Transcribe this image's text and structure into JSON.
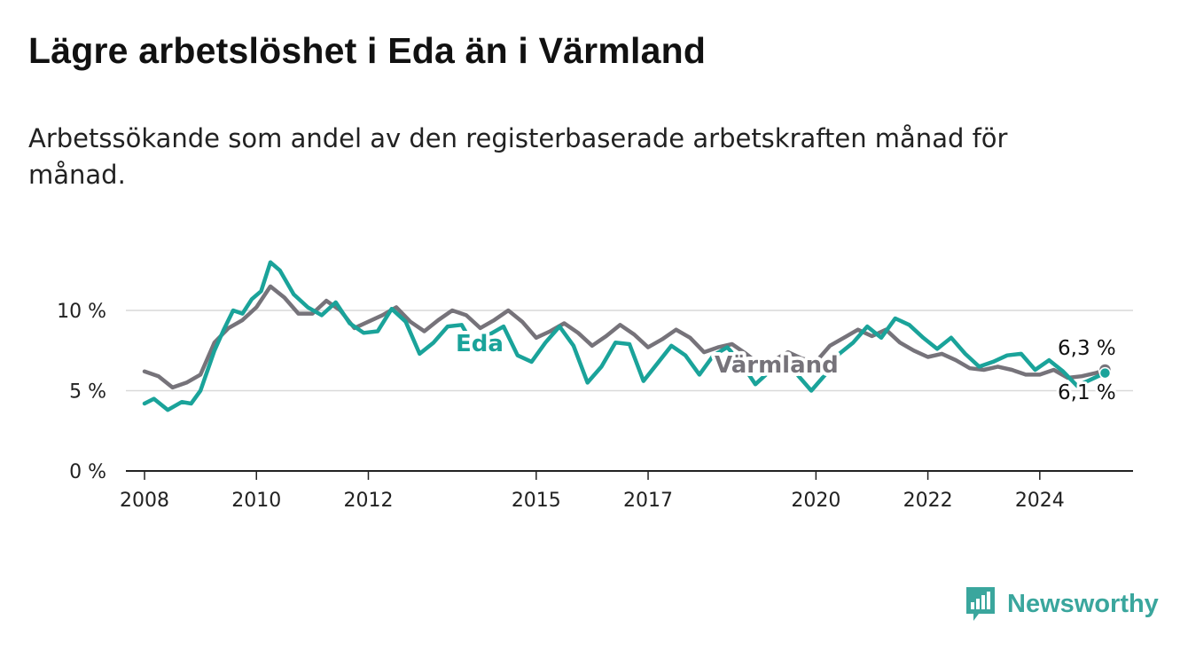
{
  "title": "Lägre arbetslöshet i Eda än i Värmland",
  "subtitle": "Arbetssökande som andel av den registerbaserade arbetskraften månad för månad.",
  "brand": "Newsworthy",
  "colors": {
    "eda": "#1aa39a",
    "varmland": "#76737a",
    "grid": "#d9d9d9",
    "axis": "#222222",
    "brand": "#3aa69d"
  },
  "chart_data": {
    "type": "line",
    "x_ticks": [
      "2008",
      "2010",
      "2012",
      "2015",
      "2017",
      "2020",
      "2022",
      "2024"
    ],
    "y_ticks": [
      "0 %",
      "5 %",
      "10 %"
    ],
    "ylim": [
      0,
      13.5
    ],
    "xlim": [
      "2007-09",
      "2025-09"
    ],
    "grid": true,
    "series": [
      {
        "name": "Eda",
        "end_label": "6,1 %",
        "points": [
          [
            "2008-01",
            4.2
          ],
          [
            "2008-03",
            4.5
          ],
          [
            "2008-06",
            3.8
          ],
          [
            "2008-09",
            4.3
          ],
          [
            "2008-11",
            4.2
          ],
          [
            "2009-01",
            5.0
          ],
          [
            "2009-04",
            7.5
          ],
          [
            "2009-06",
            8.8
          ],
          [
            "2009-08",
            10.0
          ],
          [
            "2009-10",
            9.8
          ],
          [
            "2009-12",
            10.7
          ],
          [
            "2010-02",
            11.2
          ],
          [
            "2010-04",
            13.0
          ],
          [
            "2010-06",
            12.5
          ],
          [
            "2010-09",
            11.0
          ],
          [
            "2010-12",
            10.2
          ],
          [
            "2011-03",
            9.7
          ],
          [
            "2011-06",
            10.5
          ],
          [
            "2011-09",
            9.2
          ],
          [
            "2011-12",
            8.6
          ],
          [
            "2012-03",
            8.7
          ],
          [
            "2012-06",
            10.1
          ],
          [
            "2012-09",
            9.3
          ],
          [
            "2012-12",
            7.3
          ],
          [
            "2013-03",
            8.0
          ],
          [
            "2013-06",
            9.0
          ],
          [
            "2013-09",
            9.1
          ],
          [
            "2013-12",
            7.6
          ],
          [
            "2014-03",
            8.5
          ],
          [
            "2014-06",
            9.0
          ],
          [
            "2014-09",
            7.2
          ],
          [
            "2014-12",
            6.8
          ],
          [
            "2015-03",
            8.0
          ],
          [
            "2015-06",
            9.0
          ],
          [
            "2015-09",
            7.8
          ],
          [
            "2015-12",
            5.5
          ],
          [
            "2016-03",
            6.5
          ],
          [
            "2016-06",
            8.0
          ],
          [
            "2016-09",
            7.9
          ],
          [
            "2016-12",
            5.6
          ],
          [
            "2017-03",
            6.7
          ],
          [
            "2017-06",
            7.8
          ],
          [
            "2017-09",
            7.2
          ],
          [
            "2017-12",
            6.0
          ],
          [
            "2018-03",
            7.2
          ],
          [
            "2018-06",
            7.7
          ],
          [
            "2018-09",
            6.7
          ],
          [
            "2018-12",
            5.4
          ],
          [
            "2019-03",
            6.2
          ],
          [
            "2019-06",
            6.8
          ],
          [
            "2019-09",
            6.0
          ],
          [
            "2019-12",
            5.0
          ],
          [
            "2020-03",
            6.0
          ],
          [
            "2020-06",
            7.3
          ],
          [
            "2020-09",
            8.0
          ],
          [
            "2020-12",
            9.0
          ],
          [
            "2021-03",
            8.3
          ],
          [
            "2021-06",
            9.5
          ],
          [
            "2021-09",
            9.1
          ],
          [
            "2021-12",
            8.3
          ],
          [
            "2022-03",
            7.6
          ],
          [
            "2022-06",
            8.3
          ],
          [
            "2022-09",
            7.3
          ],
          [
            "2022-12",
            6.5
          ],
          [
            "2023-03",
            6.8
          ],
          [
            "2023-06",
            7.2
          ],
          [
            "2023-09",
            7.3
          ],
          [
            "2023-12",
            6.3
          ],
          [
            "2024-03",
            6.9
          ],
          [
            "2024-06",
            6.2
          ],
          [
            "2024-09",
            5.3
          ],
          [
            "2024-12",
            5.7
          ],
          [
            "2025-03",
            6.1
          ]
        ]
      },
      {
        "name": "Värmland",
        "end_label": "6,3 %",
        "points": [
          [
            "2008-01",
            6.2
          ],
          [
            "2008-04",
            5.9
          ],
          [
            "2008-07",
            5.2
          ],
          [
            "2008-10",
            5.5
          ],
          [
            "2009-01",
            6.0
          ],
          [
            "2009-04",
            8.0
          ],
          [
            "2009-07",
            8.9
          ],
          [
            "2009-10",
            9.4
          ],
          [
            "2010-01",
            10.2
          ],
          [
            "2010-04",
            11.5
          ],
          [
            "2010-07",
            10.8
          ],
          [
            "2010-10",
            9.8
          ],
          [
            "2011-01",
            9.8
          ],
          [
            "2011-04",
            10.6
          ],
          [
            "2011-07",
            10.0
          ],
          [
            "2011-10",
            8.9
          ],
          [
            "2012-01",
            9.3
          ],
          [
            "2012-04",
            9.7
          ],
          [
            "2012-07",
            10.2
          ],
          [
            "2012-10",
            9.3
          ],
          [
            "2013-01",
            8.7
          ],
          [
            "2013-04",
            9.4
          ],
          [
            "2013-07",
            10.0
          ],
          [
            "2013-10",
            9.7
          ],
          [
            "2014-01",
            8.9
          ],
          [
            "2014-04",
            9.4
          ],
          [
            "2014-07",
            10.0
          ],
          [
            "2014-10",
            9.3
          ],
          [
            "2015-01",
            8.3
          ],
          [
            "2015-04",
            8.7
          ],
          [
            "2015-07",
            9.2
          ],
          [
            "2015-10",
            8.6
          ],
          [
            "2016-01",
            7.8
          ],
          [
            "2016-04",
            8.4
          ],
          [
            "2016-07",
            9.1
          ],
          [
            "2016-10",
            8.5
          ],
          [
            "2017-01",
            7.7
          ],
          [
            "2017-04",
            8.2
          ],
          [
            "2017-07",
            8.8
          ],
          [
            "2017-10",
            8.3
          ],
          [
            "2018-01",
            7.4
          ],
          [
            "2018-04",
            7.7
          ],
          [
            "2018-07",
            7.9
          ],
          [
            "2018-10",
            7.3
          ],
          [
            "2019-01",
            6.6
          ],
          [
            "2019-04",
            6.9
          ],
          [
            "2019-07",
            7.4
          ],
          [
            "2019-10",
            7.0
          ],
          [
            "2020-01",
            6.8
          ],
          [
            "2020-04",
            7.8
          ],
          [
            "2020-07",
            8.3
          ],
          [
            "2020-10",
            8.8
          ],
          [
            "2021-01",
            8.4
          ],
          [
            "2021-04",
            8.8
          ],
          [
            "2021-07",
            8.0
          ],
          [
            "2021-10",
            7.5
          ],
          [
            "2022-01",
            7.1
          ],
          [
            "2022-04",
            7.3
          ],
          [
            "2022-07",
            6.9
          ],
          [
            "2022-10",
            6.4
          ],
          [
            "2023-01",
            6.3
          ],
          [
            "2023-04",
            6.5
          ],
          [
            "2023-07",
            6.3
          ],
          [
            "2023-10",
            6.0
          ],
          [
            "2024-01",
            6.0
          ],
          [
            "2024-04",
            6.3
          ],
          [
            "2024-07",
            5.8
          ],
          [
            "2024-10",
            5.9
          ],
          [
            "2025-01",
            6.1
          ],
          [
            "2025-03",
            6.3
          ]
        ]
      }
    ]
  }
}
